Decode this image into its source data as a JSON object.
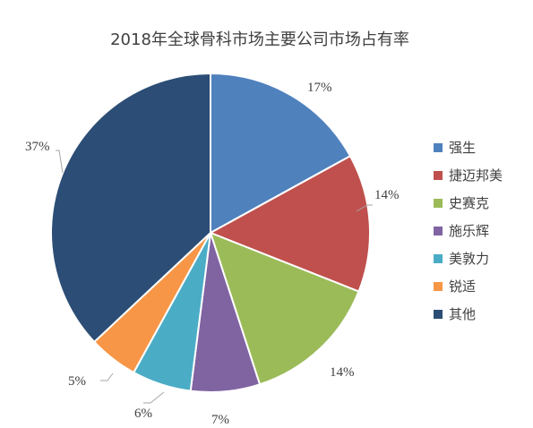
{
  "chart_data": {
    "type": "pie",
    "title": "2018年全球骨科市场主要公司市场占有率",
    "slices": [
      {
        "label": "强生",
        "value": 17,
        "display": "17%",
        "color": "#4f81bd"
      },
      {
        "label": "捷迈邦美",
        "value": 14,
        "display": "14%",
        "color": "#c0504d"
      },
      {
        "label": "史赛克",
        "value": 14,
        "display": "14%",
        "color": "#9bbb59"
      },
      {
        "label": "施乐辉",
        "value": 7,
        "display": "7%",
        "color": "#8064a2"
      },
      {
        "label": "美敦力",
        "value": 6,
        "display": "6%",
        "color": "#4bacc6"
      },
      {
        "label": "锐适",
        "value": 5,
        "display": "5%",
        "color": "#f79646"
      },
      {
        "label": "其他",
        "value": 37,
        "display": "37%",
        "color": "#2c4d75"
      }
    ],
    "legend_position": "right",
    "start_angle": "12 o'clock, clockwise"
  }
}
